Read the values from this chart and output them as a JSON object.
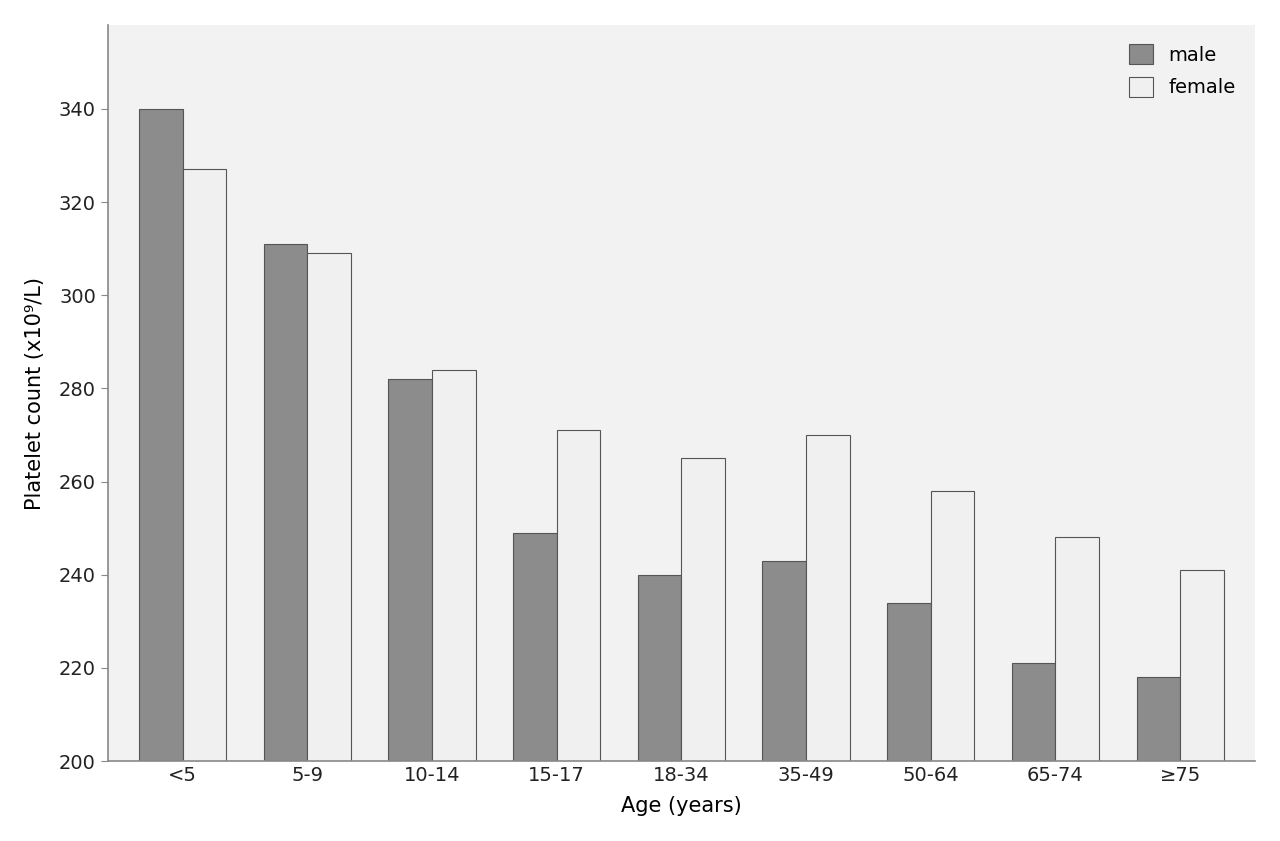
{
  "categories": [
    "<5",
    "5-9",
    "10-14",
    "15-17",
    "18-34",
    "35-49",
    "50-64",
    "65-74",
    "≥75"
  ],
  "male_values": [
    340,
    311,
    282,
    249,
    240,
    243,
    234,
    221,
    218
  ],
  "female_values": [
    327,
    309,
    284,
    271,
    265,
    270,
    258,
    248,
    241
  ],
  "male_color": "#8c8c8c",
  "female_color": "#f0f0f0",
  "bar_edge_color": "#555555",
  "xlabel": "Age (years)",
  "ylabel": "Platelet count (x10⁹/L)",
  "ylim": [
    200,
    350
  ],
  "yticks": [
    200,
    220,
    240,
    260,
    280,
    300,
    320,
    340
  ],
  "legend_labels": [
    "male",
    "female"
  ],
  "bar_width": 0.35,
  "background_color": "#ffffff",
  "plot_bg_color": "#f2f2f2",
  "axis_color": "#888888",
  "tick_label_fontsize": 14,
  "axis_label_fontsize": 15,
  "legend_fontsize": 14
}
